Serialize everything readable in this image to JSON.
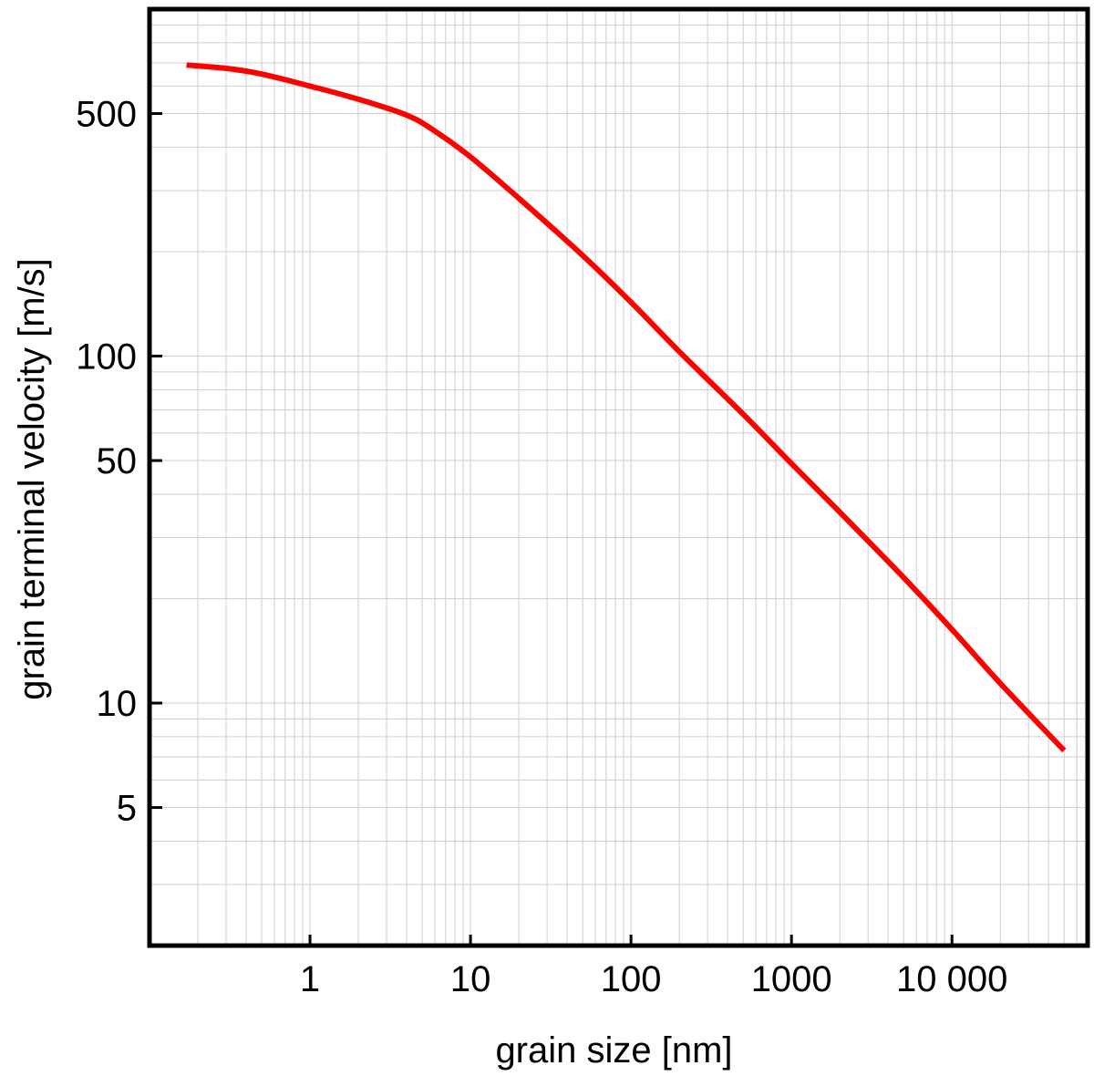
{
  "chart_data": {
    "type": "line",
    "title": "",
    "xlabel": "grain size [nm]",
    "ylabel": "grain terminal velocity [m/s]",
    "xscale": "log",
    "yscale": "log",
    "xlim": [
      0.1,
      70000
    ],
    "ylim": [
      2.0,
      1000
    ],
    "grid": true,
    "legend": "none",
    "x_ticks": [
      {
        "value": 1,
        "label": "1"
      },
      {
        "value": 10,
        "label": "10"
      },
      {
        "value": 100,
        "label": "100"
      },
      {
        "value": 1000,
        "label": "1000"
      },
      {
        "value": 10000,
        "label": "10 000"
      }
    ],
    "y_ticks": [
      {
        "value": 5,
        "label": "5"
      },
      {
        "value": 10,
        "label": "10"
      },
      {
        "value": 50,
        "label": "50"
      },
      {
        "value": 100,
        "label": "100"
      },
      {
        "value": 500,
        "label": "500"
      }
    ],
    "series": [
      {
        "color": "#ff0000",
        "x": [
          0.17,
          0.3,
          0.5,
          1,
          2,
          4,
          6,
          10,
          20,
          50,
          100,
          200,
          500,
          1000,
          2000,
          5000,
          10000,
          20000,
          50000
        ],
        "y": [
          690,
          675,
          650,
          600,
          550,
          495,
          445,
          375,
          285,
          195,
          143,
          103,
          68,
          49,
          35.5,
          23,
          16.3,
          11.4,
          7.3
        ]
      }
    ]
  }
}
